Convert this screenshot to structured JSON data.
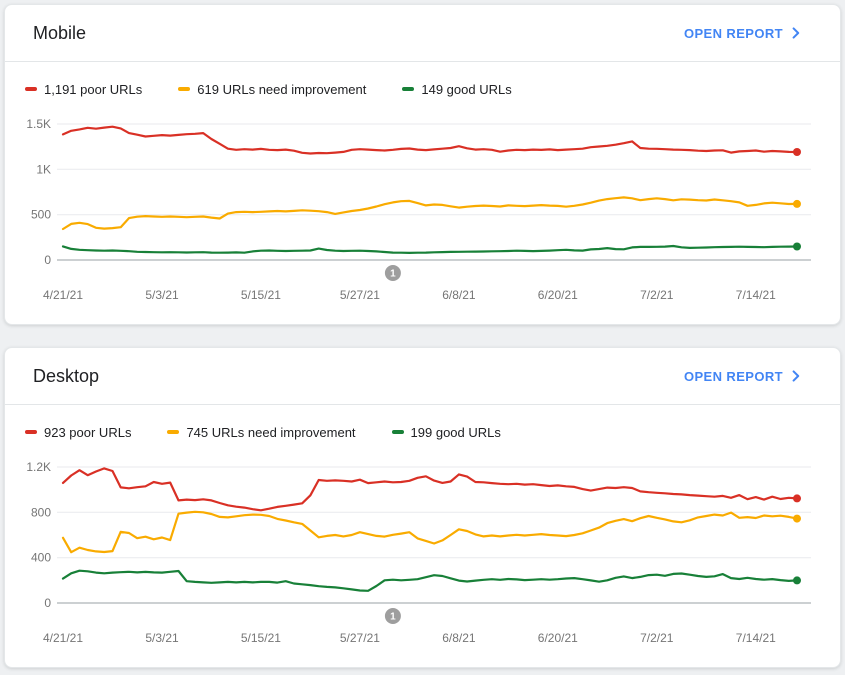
{
  "colors": {
    "poor": "#d93025",
    "needs_improvement": "#f9ab00",
    "good": "#188038",
    "link_blue": "#4285f4",
    "annotation_gray": "#9e9e9e",
    "gridline": "#e9eaee",
    "axis_line": "#9aa0a6",
    "tick_text": "#757575"
  },
  "cards": [
    {
      "title": "Mobile",
      "open_report_label": "OPEN REPORT",
      "legend": [
        {
          "label": "1,191 poor URLs"
        },
        {
          "label": "619 URLs need improvement"
        },
        {
          "label": "149 good URLs"
        }
      ]
    },
    {
      "title": "Desktop",
      "open_report_label": "OPEN REPORT",
      "legend": [
        {
          "label": "923 poor URLs"
        },
        {
          "label": "745 URLs need improvement"
        },
        {
          "label": "199 good URLs"
        }
      ]
    }
  ],
  "chart_data": [
    {
      "type": "line",
      "title": "Mobile",
      "x_tick_labels": [
        "4/21/21",
        "5/3/21",
        "5/15/21",
        "5/27/21",
        "6/8/21",
        "6/20/21",
        "7/2/21",
        "7/14/21"
      ],
      "x_tick_days": [
        0,
        12,
        24,
        36,
        48,
        60,
        72,
        84
      ],
      "x_range_days": [
        0,
        89
      ],
      "ylim": [
        0,
        1500
      ],
      "y_tick_values": [
        1500,
        1000,
        500,
        0
      ],
      "y_tick_labels": [
        "1.5K",
        "1K",
        "500",
        "0"
      ],
      "grid": true,
      "legend_position": "top",
      "annotation": {
        "label": "1",
        "day": 40
      },
      "series": [
        {
          "name": "poor URLs",
          "current": 1191,
          "color": "#d93025",
          "values": [
            1385,
            1425,
            1440,
            1458,
            1448,
            1460,
            1470,
            1452,
            1400,
            1382,
            1362,
            1370,
            1378,
            1372,
            1380,
            1388,
            1392,
            1400,
            1335,
            1282,
            1228,
            1215,
            1222,
            1218,
            1225,
            1215,
            1212,
            1218,
            1205,
            1182,
            1175,
            1180,
            1178,
            1185,
            1192,
            1215,
            1222,
            1218,
            1212,
            1208,
            1215,
            1225,
            1230,
            1218,
            1212,
            1220,
            1228,
            1235,
            1255,
            1232,
            1218,
            1222,
            1215,
            1195,
            1208,
            1215,
            1212,
            1218,
            1214,
            1220,
            1212,
            1218,
            1222,
            1228,
            1244,
            1252,
            1260,
            1272,
            1288,
            1308,
            1235,
            1228,
            1226,
            1222,
            1218,
            1215,
            1212,
            1205,
            1202,
            1208,
            1210,
            1185,
            1198,
            1202,
            1208,
            1195,
            1202,
            1198,
            1192,
            1191
          ]
        },
        {
          "name": "URLs need improvement",
          "current": 619,
          "color": "#f9ab00",
          "values": [
            342,
            398,
            410,
            396,
            355,
            346,
            352,
            362,
            462,
            478,
            484,
            480,
            476,
            480,
            477,
            472,
            476,
            480,
            468,
            458,
            512,
            528,
            532,
            528,
            532,
            536,
            540,
            536,
            542,
            548,
            544,
            538,
            528,
            508,
            525,
            540,
            552,
            568,
            590,
            615,
            635,
            648,
            652,
            628,
            602,
            612,
            608,
            592,
            578,
            588,
            596,
            600,
            596,
            590,
            602,
            598,
            594,
            600,
            605,
            600,
            597,
            588,
            598,
            612,
            632,
            655,
            672,
            682,
            690,
            680,
            660,
            672,
            680,
            672,
            658,
            670,
            666,
            660,
            656,
            667,
            658,
            648,
            635,
            598,
            608,
            624,
            632,
            625,
            618,
            619
          ]
        },
        {
          "name": "good URLs",
          "current": 149,
          "color": "#188038",
          "values": [
            150,
            122,
            112,
            108,
            105,
            103,
            105,
            101,
            97,
            90,
            88,
            86,
            85,
            86,
            85,
            83,
            85,
            86,
            82,
            80,
            82,
            84,
            81,
            95,
            103,
            105,
            101,
            99,
            101,
            103,
            105,
            126,
            110,
            103,
            99,
            101,
            103,
            99,
            95,
            88,
            82,
            80,
            78,
            80,
            82,
            85,
            87,
            89,
            90,
            92,
            93,
            94,
            96,
            97,
            99,
            103,
            100,
            98,
            100,
            104,
            108,
            113,
            106,
            104,
            117,
            121,
            131,
            120,
            118,
            139,
            145,
            144,
            146,
            148,
            154,
            140,
            134,
            136,
            138,
            141,
            143,
            145,
            147,
            145,
            143,
            141,
            144,
            147,
            148,
            149
          ]
        }
      ]
    },
    {
      "type": "line",
      "title": "Desktop",
      "x_tick_labels": [
        "4/21/21",
        "5/3/21",
        "5/15/21",
        "5/27/21",
        "6/8/21",
        "6/20/21",
        "7/2/21",
        "7/14/21"
      ],
      "x_tick_days": [
        0,
        12,
        24,
        36,
        48,
        60,
        72,
        84
      ],
      "x_range_days": [
        0,
        89
      ],
      "ylim": [
        0,
        1200
      ],
      "y_tick_values": [
        1200,
        800,
        400,
        0
      ],
      "y_tick_labels": [
        "1.2K",
        "800",
        "400",
        "0"
      ],
      "grid": true,
      "legend_position": "top",
      "annotation": {
        "label": "1",
        "day": 40
      },
      "series": [
        {
          "name": "poor URLs",
          "current": 923,
          "color": "#d93025",
          "values": [
            1060,
            1125,
            1172,
            1128,
            1160,
            1188,
            1165,
            1020,
            1012,
            1022,
            1030,
            1068,
            1052,
            1062,
            905,
            912,
            908,
            915,
            905,
            882,
            862,
            850,
            842,
            828,
            818,
            832,
            848,
            858,
            868,
            880,
            950,
            1085,
            1078,
            1082,
            1078,
            1072,
            1088,
            1058,
            1065,
            1072,
            1065,
            1068,
            1078,
            1105,
            1118,
            1080,
            1060,
            1072,
            1135,
            1115,
            1068,
            1065,
            1058,
            1052,
            1048,
            1052,
            1045,
            1048,
            1040,
            1032,
            1038,
            1030,
            1024,
            1005,
            992,
            1005,
            1018,
            1015,
            1022,
            1015,
            985,
            978,
            972,
            968,
            962,
            958,
            952,
            948,
            942,
            938,
            945,
            928,
            952,
            916,
            934,
            912,
            938,
            918,
            928,
            923
          ]
        },
        {
          "name": "URLs need improvement",
          "current": 745,
          "color": "#f9ab00",
          "values": [
            575,
            448,
            488,
            468,
            455,
            450,
            458,
            628,
            618,
            572,
            585,
            562,
            578,
            555,
            788,
            798,
            805,
            800,
            785,
            760,
            755,
            765,
            775,
            780,
            778,
            768,
            742,
            728,
            712,
            698,
            640,
            580,
            592,
            600,
            588,
            600,
            625,
            608,
            592,
            586,
            602,
            612,
            625,
            570,
            548,
            525,
            552,
            600,
            650,
            635,
            605,
            588,
            596,
            588,
            596,
            602,
            596,
            602,
            608,
            600,
            596,
            590,
            600,
            615,
            640,
            665,
            705,
            725,
            740,
            722,
            748,
            768,
            752,
            738,
            720,
            712,
            730,
            755,
            768,
            780,
            772,
            798,
            752,
            758,
            750,
            772,
            765,
            770,
            760,
            745
          ]
        },
        {
          "name": "good URLs",
          "current": 199,
          "color": "#188038",
          "values": [
            215,
            262,
            285,
            280,
            268,
            262,
            268,
            272,
            275,
            270,
            274,
            270,
            268,
            275,
            282,
            192,
            186,
            182,
            178,
            182,
            186,
            182,
            186,
            182,
            186,
            186,
            180,
            192,
            172,
            165,
            158,
            148,
            142,
            138,
            130,
            120,
            110,
            108,
            150,
            200,
            206,
            200,
            205,
            210,
            228,
            245,
            238,
            218,
            198,
            190,
            198,
            205,
            210,
            205,
            212,
            208,
            202,
            206,
            210,
            206,
            210,
            216,
            220,
            210,
            199,
            188,
            200,
            222,
            235,
            220,
            230,
            246,
            250,
            240,
            257,
            260,
            250,
            238,
            230,
            236,
            255,
            220,
            212,
            222,
            212,
            206,
            211,
            202,
            195,
            199
          ]
        }
      ]
    }
  ]
}
